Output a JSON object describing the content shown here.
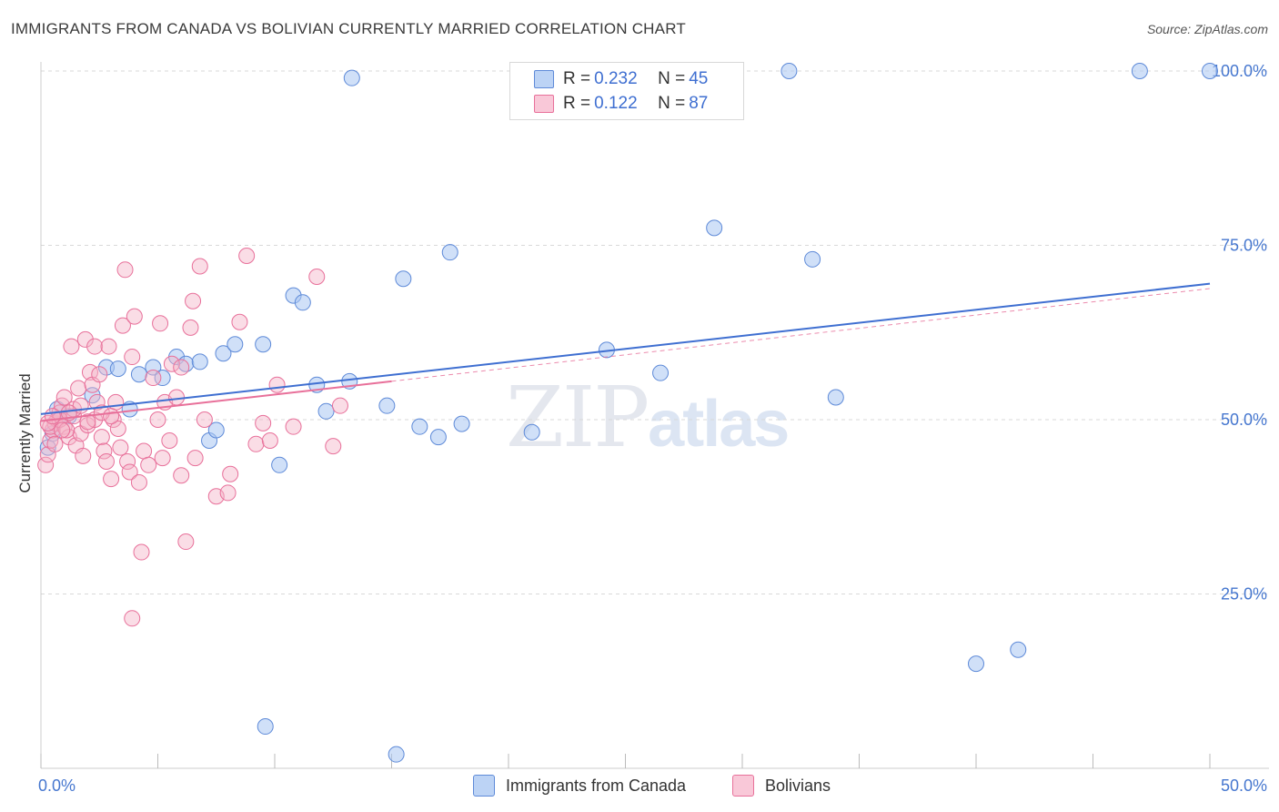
{
  "title": "IMMIGRANTS FROM CANADA VS BOLIVIAN CURRENTLY MARRIED CORRELATION CHART",
  "source": "Source: ZipAtlas.com",
  "watermark": {
    "zip": "ZIP",
    "atlas": "atlas"
  },
  "colors": {
    "blue": "#3f6fd1",
    "blue_fill": "#a9c6f3",
    "pink": "#e8709a",
    "pink_fill": "#f5b3c8",
    "grid": "#d9d9d9",
    "axis_label": "#4677cf"
  },
  "legend": {
    "rows": [
      {
        "r_label": "R = ",
        "r_value": "0.232",
        "n_label": "N = ",
        "n_value": "45"
      },
      {
        "r_label": "R = ",
        "r_value": "0.122",
        "n_label": "N = ",
        "n_value": "87"
      }
    ]
  },
  "bottom_legend": {
    "canada": "Immigrants from Canada",
    "bolivians": "Bolivians"
  },
  "chart_data": {
    "type": "scatter",
    "title": "IMMIGRANTS FROM CANADA VS BOLIVIAN CURRENTLY MARRIED CORRELATION CHART",
    "xlabel": "",
    "ylabel": "Currently Married",
    "xlim": [
      0,
      50
    ],
    "ylim": [
      0,
      100
    ],
    "x_tick_labels": [
      "0.0%",
      "50.0%"
    ],
    "y_tick_labels": [
      "25.0%",
      "50.0%",
      "75.0%",
      "100.0%"
    ],
    "y_ticks": [
      25,
      50,
      75,
      100
    ],
    "series": [
      {
        "name": "Immigrants from Canada",
        "color": "blue",
        "points": [
          [
            0.3,
            46
          ],
          [
            0.5,
            48
          ],
          [
            0.7,
            51.5
          ],
          [
            1.2,
            50.5
          ],
          [
            2.2,
            53.5
          ],
          [
            2.8,
            57.5
          ],
          [
            3.3,
            57.3
          ],
          [
            3.8,
            51.5
          ],
          [
            4.2,
            56.5
          ],
          [
            4.8,
            57.5
          ],
          [
            5.2,
            56
          ],
          [
            5.8,
            59
          ],
          [
            6.2,
            58
          ],
          [
            6.8,
            58.3
          ],
          [
            7.2,
            47
          ],
          [
            7.5,
            48.5
          ],
          [
            7.8,
            59.5
          ],
          [
            8.3,
            60.8
          ],
          [
            9.5,
            60.8
          ],
          [
            10.2,
            43.5
          ],
          [
            10.8,
            67.8
          ],
          [
            11.2,
            66.8
          ],
          [
            11.8,
            55
          ],
          [
            12.2,
            51.2
          ],
          [
            13.2,
            55.5
          ],
          [
            13.3,
            99
          ],
          [
            14.8,
            52
          ],
          [
            15.5,
            70.2
          ],
          [
            16.2,
            49
          ],
          [
            17.0,
            47.5
          ],
          [
            17.5,
            74
          ],
          [
            18.0,
            49.4
          ],
          [
            21.0,
            48.2
          ],
          [
            24.2,
            60
          ],
          [
            26.5,
            56.7
          ],
          [
            28.8,
            77.5
          ],
          [
            32.0,
            100
          ],
          [
            33.0,
            73
          ],
          [
            34.0,
            53.2
          ],
          [
            40.0,
            15
          ],
          [
            41.8,
            17
          ],
          [
            47.0,
            100
          ],
          [
            50.0,
            100
          ],
          [
            9.6,
            6
          ],
          [
            15.2,
            2
          ]
        ]
      },
      {
        "name": "Bolivians",
        "color": "pink",
        "points": [
          [
            0.2,
            43.5
          ],
          [
            0.3,
            45
          ],
          [
            0.4,
            47
          ],
          [
            0.5,
            48.5
          ],
          [
            0.6,
            49.5
          ],
          [
            0.7,
            50
          ],
          [
            0.8,
            51
          ],
          [
            0.9,
            52
          ],
          [
            1.0,
            53.2
          ],
          [
            1.0,
            49
          ],
          [
            1.2,
            47.5
          ],
          [
            1.3,
            60.5
          ],
          [
            1.4,
            50.5
          ],
          [
            1.5,
            46.3
          ],
          [
            1.6,
            54.5
          ],
          [
            1.7,
            48
          ],
          [
            1.8,
            44.8
          ],
          [
            1.9,
            61.5
          ],
          [
            2.0,
            49.2
          ],
          [
            2.1,
            56.8
          ],
          [
            2.2,
            55
          ],
          [
            2.3,
            60.5
          ],
          [
            2.3,
            50
          ],
          [
            2.4,
            52.5
          ],
          [
            2.5,
            56.5
          ],
          [
            2.6,
            47.5
          ],
          [
            2.7,
            45.5
          ],
          [
            2.8,
            44
          ],
          [
            2.9,
            60.5
          ],
          [
            3.0,
            41.5
          ],
          [
            3.1,
            50
          ],
          [
            3.2,
            52.5
          ],
          [
            3.3,
            48.7
          ],
          [
            3.5,
            63.5
          ],
          [
            3.6,
            71.5
          ],
          [
            3.7,
            44
          ],
          [
            3.8,
            42.5
          ],
          [
            3.9,
            59
          ],
          [
            4.0,
            64.8
          ],
          [
            4.2,
            41
          ],
          [
            4.4,
            45.5
          ],
          [
            4.6,
            43.5
          ],
          [
            4.8,
            56
          ],
          [
            5.0,
            50
          ],
          [
            5.1,
            63.8
          ],
          [
            5.2,
            44.5
          ],
          [
            5.3,
            52.5
          ],
          [
            5.5,
            47
          ],
          [
            5.6,
            58
          ],
          [
            5.8,
            53.2
          ],
          [
            6.0,
            42
          ],
          [
            6.2,
            32.5
          ],
          [
            6.4,
            63.2
          ],
          [
            6.5,
            67
          ],
          [
            6.6,
            44.5
          ],
          [
            6.8,
            72
          ],
          [
            7.0,
            50
          ],
          [
            6.0,
            57.5
          ],
          [
            7.5,
            39
          ],
          [
            8.0,
            39.5
          ],
          [
            8.1,
            42.2
          ],
          [
            8.5,
            64
          ],
          [
            8.8,
            73.5
          ],
          [
            9.2,
            46.5
          ],
          [
            9.5,
            49.5
          ],
          [
            9.8,
            47
          ],
          [
            10.1,
            55
          ],
          [
            10.8,
            49
          ],
          [
            11.8,
            70.5
          ],
          [
            12.5,
            46.2
          ],
          [
            12.8,
            52
          ],
          [
            4.3,
            31
          ],
          [
            3.9,
            21.5
          ],
          [
            0.4,
            49
          ],
          [
            0.8,
            50
          ],
          [
            1.1,
            48.5
          ],
          [
            0.6,
            46.5
          ],
          [
            1.4,
            51.5
          ],
          [
            2.0,
            49.7
          ],
          [
            1.7,
            52
          ],
          [
            0.9,
            48.5
          ],
          [
            2.6,
            51
          ],
          [
            3.0,
            50.5
          ],
          [
            3.4,
            46
          ],
          [
            0.3,
            49.5
          ],
          [
            0.5,
            50.5
          ],
          [
            1.2,
            51
          ]
        ]
      }
    ],
    "trend_lines": [
      {
        "series": "Immigrants from Canada",
        "from": [
          0,
          50.8
        ],
        "to": [
          50,
          69.5
        ],
        "dashed_from": null
      },
      {
        "series": "Bolivians",
        "from": [
          0,
          49.8
        ],
        "solid_to_x": 15,
        "to": [
          50,
          68.8
        ]
      }
    ]
  }
}
